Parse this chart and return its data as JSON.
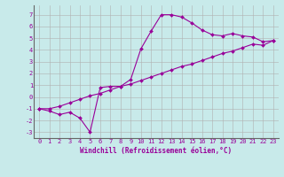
{
  "title": "",
  "xlabel": "Windchill (Refroidissement éolien,°C)",
  "ylabel": "",
  "xlim": [
    -0.5,
    23.5
  ],
  "ylim": [
    -3.5,
    7.8
  ],
  "yticks": [
    -3,
    -2,
    -1,
    0,
    1,
    2,
    3,
    4,
    5,
    6,
    7
  ],
  "xticks": [
    0,
    1,
    2,
    3,
    4,
    5,
    6,
    7,
    8,
    9,
    10,
    11,
    12,
    13,
    14,
    15,
    16,
    17,
    18,
    19,
    20,
    21,
    22,
    23
  ],
  "line_color": "#990099",
  "bg_color": "#c8eaea",
  "grid_color": "#b0b0b0",
  "line1_x": [
    0,
    1,
    2,
    3,
    4,
    5,
    6,
    7,
    8,
    9,
    10,
    11,
    12,
    13,
    14,
    15,
    16,
    17,
    18,
    19,
    20,
    21,
    22,
    23
  ],
  "line1_y": [
    -1.0,
    -1.2,
    -1.5,
    -1.3,
    -1.8,
    -3.0,
    0.8,
    0.9,
    0.9,
    1.5,
    4.1,
    5.6,
    7.0,
    7.0,
    6.8,
    6.3,
    5.7,
    5.3,
    5.2,
    5.4,
    5.2,
    5.1,
    4.7,
    4.8
  ],
  "line2_x": [
    0,
    1,
    2,
    3,
    4,
    5,
    6,
    7,
    8,
    9,
    10,
    11,
    12,
    13,
    14,
    15,
    16,
    17,
    18,
    19,
    20,
    21,
    22,
    23
  ],
  "line2_y": [
    -1.0,
    -1.0,
    -0.8,
    -0.5,
    -0.2,
    0.1,
    0.3,
    0.6,
    0.9,
    1.1,
    1.4,
    1.7,
    2.0,
    2.3,
    2.6,
    2.8,
    3.1,
    3.4,
    3.7,
    3.9,
    4.2,
    4.5,
    4.4,
    4.8
  ],
  "xlabel_fontsize": 5.5,
  "tick_fontsize": 5.0,
  "marker_size": 2.0,
  "line_width": 0.8
}
